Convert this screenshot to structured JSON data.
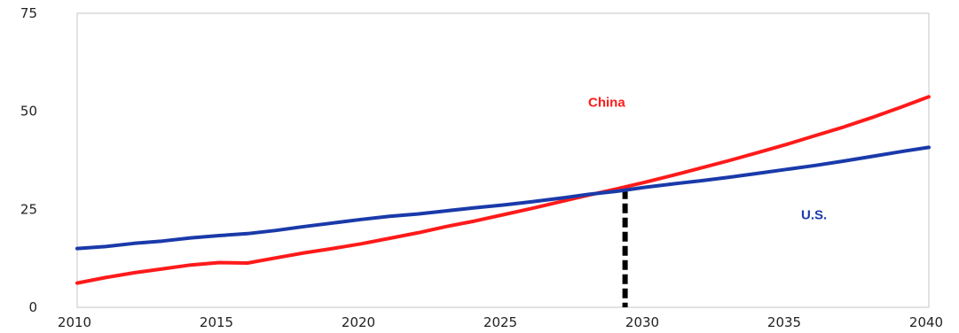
{
  "chart_data": {
    "type": "line",
    "title": "",
    "xlabel": "",
    "ylabel": "",
    "xlim": [
      2010,
      2040
    ],
    "ylim": [
      0,
      75
    ],
    "x_ticks": [
      "2010",
      "2015",
      "2020",
      "2025",
      "2030",
      "2035",
      "2040"
    ],
    "y_ticks": [
      "0",
      "25",
      "50",
      "75"
    ],
    "grid": false,
    "legend": "none",
    "series": [
      {
        "name": "China",
        "color": "#ff1a1a",
        "x": [
          2010,
          2011,
          2012,
          2013,
          2014,
          2015,
          2016,
          2017,
          2018,
          2019,
          2020,
          2021,
          2022,
          2023,
          2024,
          2025,
          2026,
          2027,
          2028,
          2029,
          2030,
          2031,
          2032,
          2033,
          2034,
          2035,
          2036,
          2037,
          2038,
          2039,
          2040
        ],
        "y": [
          6.2,
          7.6,
          8.8,
          9.8,
          10.8,
          11.4,
          11.3,
          12.6,
          13.9,
          15.0,
          16.2,
          17.6,
          19.0,
          20.6,
          22.0,
          23.6,
          25.2,
          26.9,
          28.6,
          30.2,
          31.9,
          33.7,
          35.6,
          37.5,
          39.5,
          41.6,
          43.8,
          46.0,
          48.4,
          51.0,
          53.7
        ]
      },
      {
        "name": "U.S.",
        "color": "#1a3aaa",
        "x": [
          2010,
          2011,
          2012,
          2013,
          2014,
          2015,
          2016,
          2017,
          2018,
          2019,
          2020,
          2021,
          2022,
          2023,
          2024,
          2025,
          2026,
          2027,
          2028,
          2029,
          2030,
          2031,
          2032,
          2033,
          2034,
          2035,
          2036,
          2037,
          2038,
          2039,
          2040
        ],
        "y": [
          15.0,
          15.5,
          16.3,
          16.9,
          17.7,
          18.3,
          18.8,
          19.6,
          20.6,
          21.5,
          22.4,
          23.2,
          23.8,
          24.6,
          25.4,
          26.1,
          26.9,
          27.8,
          28.8,
          29.6,
          30.6,
          31.5,
          32.3,
          33.2,
          34.2,
          35.2,
          36.2,
          37.3,
          38.5,
          39.7,
          40.8
        ]
      }
    ],
    "series_labels": [
      {
        "text": "China",
        "color": "#ff1a1a",
        "x": 2028.0,
        "y": 51.2
      },
      {
        "text": "U.S.",
        "color": "#1a3aaa",
        "x": 2035.5,
        "y": 22.5
      }
    ],
    "reference_line": {
      "x": 2029.3,
      "y_from": 0,
      "y_to": 30.1,
      "color": "#000000",
      "style": "dashed"
    }
  }
}
